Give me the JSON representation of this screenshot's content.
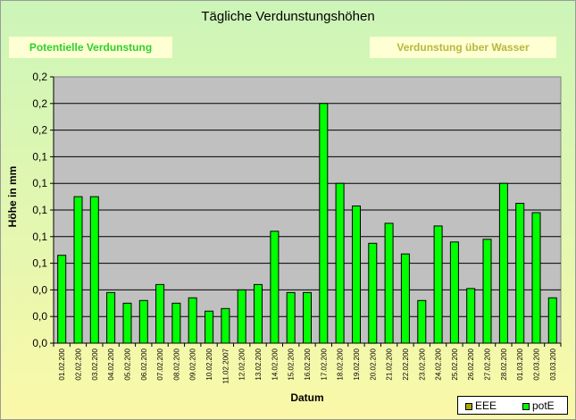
{
  "header": {
    "title": "Tägliche Verdunstungshöhen",
    "left_tab": "Potentielle Verdunstung",
    "right_tab": "Verdunstung über Wasser"
  },
  "chart_data": {
    "type": "bar",
    "title": "Tägliche Verdunstungshöhen",
    "xlabel": "Datum",
    "ylabel": "Höhe in mm",
    "ylim": [
      0,
      10
    ],
    "grid": true,
    "legend_position": "bottom-right",
    "tick_labels_y": [
      "0,0",
      "0,0",
      "0,0",
      "0,1",
      "0,1",
      "0,1",
      "0,1",
      "0,1",
      "0,2",
      "0,2",
      "0,2"
    ],
    "categories": [
      "01.02.200",
      "02.02.200",
      "03.02.200",
      "04.02.200",
      "05.02.200",
      "06.02.200",
      "07.02.200",
      "08.02.200",
      "09.02.200",
      "10.02.200",
      "11.02.2007",
      "12.02.200",
      "13.02.200",
      "14.02.200",
      "15.02.200",
      "16.02.200",
      "17.02.200",
      "18.02.200",
      "19.02.200",
      "20.02.200",
      "21.02.200",
      "22.02.200",
      "23.02.200",
      "24.02.200",
      "25.02.200",
      "26.02.200",
      "27.02.200",
      "28.02.200",
      "01.03.200",
      "02.03.200",
      "03.03.200"
    ],
    "series": [
      {
        "name": "EEE",
        "color": "#a8a800",
        "values": [
          0,
          0,
          0,
          0,
          0,
          0,
          0,
          0,
          0,
          0,
          0,
          0,
          0,
          0,
          0,
          0,
          0,
          0,
          0,
          0,
          0,
          0,
          0,
          0,
          0,
          0,
          0,
          0,
          0,
          0,
          0
        ]
      },
      {
        "name": "potE",
        "color": "#00ff00",
        "values": [
          3.3,
          5.5,
          5.5,
          1.9,
          1.5,
          1.6,
          2.2,
          1.5,
          1.7,
          1.2,
          1.3,
          2.0,
          2.2,
          4.2,
          1.9,
          1.9,
          9.0,
          6.0,
          5.15,
          3.75,
          4.5,
          3.35,
          1.6,
          4.4,
          3.8,
          2.05,
          3.9,
          6.0,
          5.25,
          4.9,
          1.7
        ]
      }
    ]
  },
  "legend": {
    "items": [
      {
        "label": "EEE",
        "color": "#a8a800"
      },
      {
        "label": "potE",
        "color": "#00ff00"
      }
    ]
  }
}
